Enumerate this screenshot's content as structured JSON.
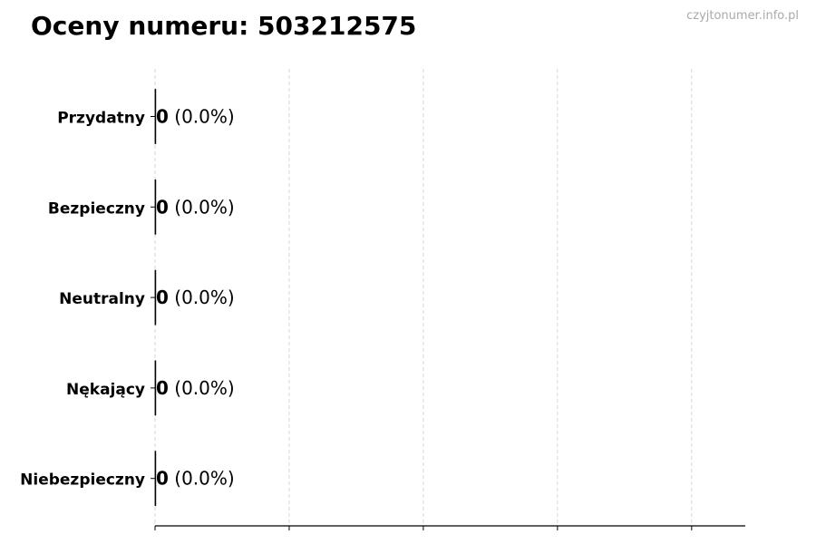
{
  "title": "Oceny numeru: 503212575",
  "watermark": "czyjtonumer.info.pl",
  "chart_data": {
    "type": "bar",
    "orientation": "horizontal",
    "title": "Oceny numeru: 503212575",
    "categories": [
      "Przydatny",
      "Bezpieczny",
      "Neutralny",
      "Nękający",
      "Niebezpieczny"
    ],
    "values": [
      0,
      0,
      0,
      0,
      0
    ],
    "labels": [
      {
        "count": "0",
        "pct": "(0.0%)"
      },
      {
        "count": "0",
        "pct": "(0.0%)"
      },
      {
        "count": "0",
        "pct": "(0.0%)"
      },
      {
        "count": "0",
        "pct": "(0.0%)"
      },
      {
        "count": "0",
        "pct": "(0.0%)"
      }
    ],
    "xlim": [
      0,
      4.4
    ],
    "xticks": [
      0,
      1,
      2,
      3,
      4
    ],
    "xtick_labels_shown": false,
    "grid": "x-dashed",
    "bar_edge_color": "#000000",
    "grid_color": "#cccccc"
  }
}
